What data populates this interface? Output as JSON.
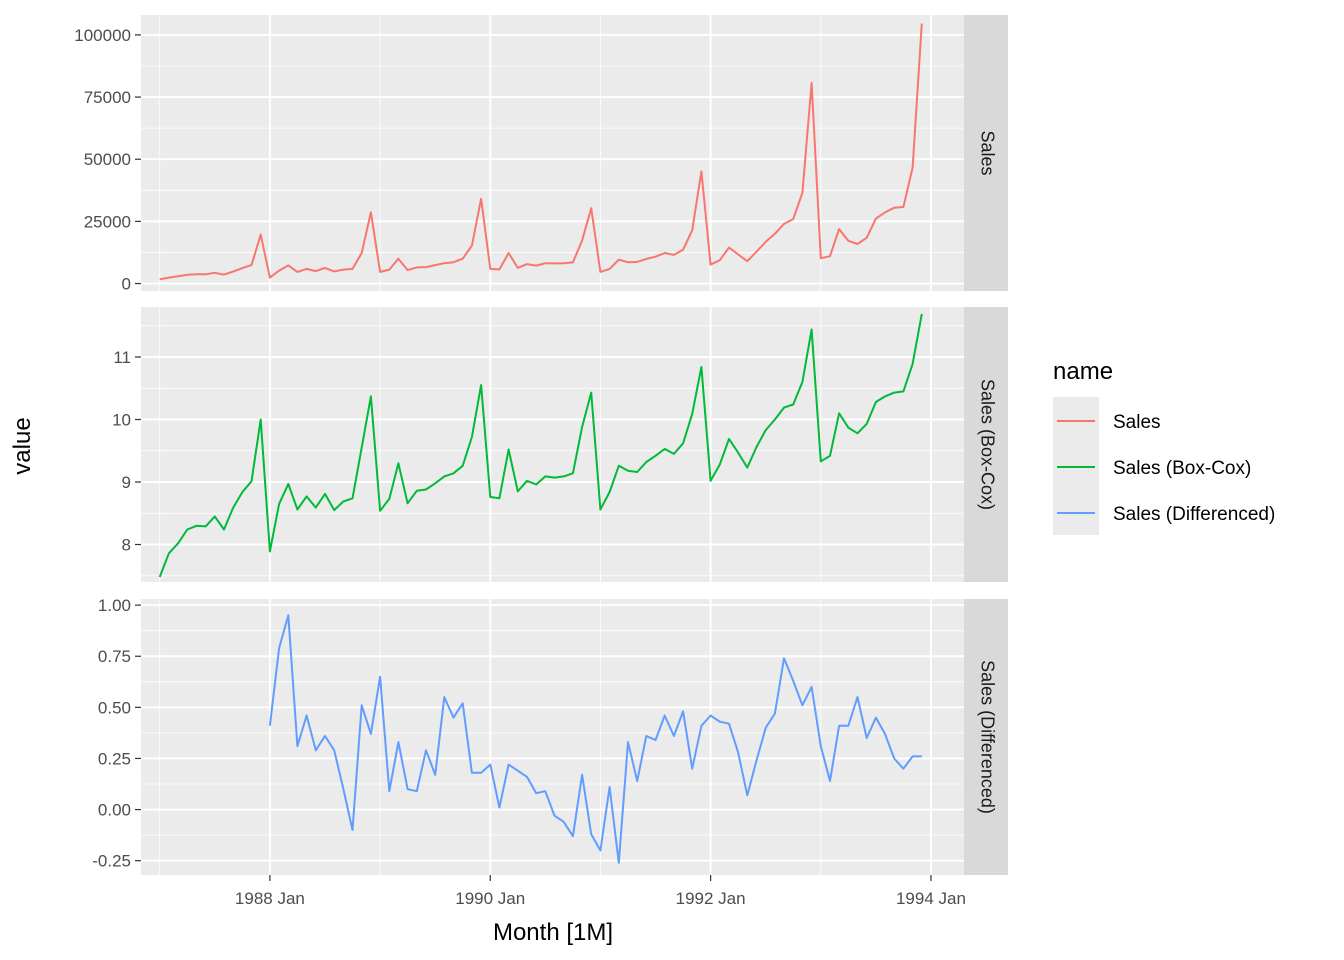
{
  "chart_data": {
    "type": "line",
    "xlabel": "Month [1M]",
    "ylabel": "value",
    "x_tick_labels": [
      "1988 Jan",
      "1990 Jan",
      "1992 Jan",
      "1994 Jan"
    ],
    "x_start": "1987 Jan",
    "legend": {
      "title": "name",
      "position": "right",
      "entries": [
        "Sales",
        "Sales (Box-Cox)",
        "Sales (Differenced)"
      ]
    },
    "grid": true,
    "panels": [
      {
        "name": "Sales",
        "strip_label": "Sales",
        "color": "#F8766D",
        "ylim": [
          -3000,
          108000
        ],
        "y_ticks": [
          0,
          25000,
          50000,
          75000,
          100000
        ],
        "y_tick_labels": [
          "0",
          "25000",
          "50000",
          "75000",
          "100000"
        ],
        "values": [
          1700,
          2400,
          2900,
          3500,
          3700,
          3700,
          4300,
          3600,
          4800,
          6200,
          7400,
          19700,
          2400,
          5200,
          7300,
          4700,
          5900,
          5000,
          6300,
          4900,
          5600,
          5900,
          12300,
          28600,
          4700,
          5600,
          10000,
          5400,
          6500,
          6600,
          7400,
          8200,
          8600,
          10000,
          15200,
          34100,
          5900,
          5700,
          12300,
          6300,
          7800,
          7200,
          8200,
          8100,
          8200,
          8500,
          17300,
          30300,
          4700,
          5900,
          9600,
          8600,
          8700,
          9900,
          10800,
          12300,
          11500,
          13600,
          21400,
          45100,
          7600,
          9400,
          14500,
          11700,
          9000,
          12800,
          16800,
          20000,
          24000,
          25900,
          36500,
          80700,
          10200,
          11000,
          21900,
          17200,
          15900,
          18400,
          26100,
          28600,
          30500,
          30800,
          46600,
          104600
        ]
      },
      {
        "name": "Sales (Box-Cox)",
        "strip_label": "Sales (Box-Cox)",
        "color": "#00BA38",
        "ylim": [
          7.4,
          11.8
        ],
        "y_ticks": [
          8,
          9,
          10,
          11
        ],
        "y_tick_labels": [
          "8",
          "9",
          "10",
          "11"
        ],
        "values": [
          7.48,
          7.86,
          8.02,
          8.24,
          8.3,
          8.29,
          8.45,
          8.24,
          8.59,
          8.84,
          9.01,
          10.0,
          7.89,
          8.65,
          8.97,
          8.56,
          8.77,
          8.59,
          8.81,
          8.55,
          8.69,
          8.74,
          9.55,
          10.37,
          8.54,
          8.73,
          9.3,
          8.66,
          8.86,
          8.88,
          8.98,
          9.09,
          9.14,
          9.26,
          9.72,
          10.55,
          8.76,
          8.74,
          9.52,
          8.85,
          9.02,
          8.96,
          9.09,
          9.07,
          9.09,
          9.14,
          9.88,
          10.43,
          8.56,
          8.84,
          9.26,
          9.18,
          9.16,
          9.32,
          9.42,
          9.53,
          9.45,
          9.62,
          10.09,
          10.84,
          9.02,
          9.28,
          9.69,
          9.47,
          9.23,
          9.56,
          9.83,
          10.0,
          10.19,
          10.24,
          10.6,
          11.44,
          9.33,
          9.42,
          10.1,
          9.87,
          9.78,
          9.93,
          10.28,
          10.37,
          10.43,
          10.45,
          10.89,
          11.69
        ]
      },
      {
        "name": "Sales (Differenced)",
        "strip_label": "Sales (Differenced)",
        "color": "#619CFF",
        "ylim": [
          -0.32,
          1.03
        ],
        "y_ticks": [
          -0.25,
          0,
          0.25,
          0.5,
          0.75,
          1.0
        ],
        "y_tick_labels": [
          "-0.25",
          "0.00",
          "0.25",
          "0.50",
          "0.75",
          "1.00"
        ],
        "values": [
          null,
          null,
          null,
          null,
          null,
          null,
          null,
          null,
          null,
          null,
          null,
          null,
          0.41,
          0.79,
          0.95,
          0.31,
          0.46,
          0.29,
          0.36,
          0.29,
          0.1,
          -0.1,
          0.51,
          0.37,
          0.65,
          0.09,
          0.33,
          0.1,
          0.09,
          0.29,
          0.17,
          0.55,
          0.45,
          0.52,
          0.18,
          0.18,
          0.22,
          0.01,
          0.22,
          0.19,
          0.16,
          0.08,
          0.09,
          -0.03,
          -0.06,
          -0.13,
          0.17,
          -0.12,
          -0.2,
          0.11,
          -0.26,
          0.33,
          0.14,
          0.36,
          0.34,
          0.46,
          0.36,
          0.48,
          0.2,
          0.41,
          0.46,
          0.43,
          0.42,
          0.28,
          0.07,
          0.24,
          0.4,
          0.47,
          0.74,
          0.63,
          0.51,
          0.6,
          0.31,
          0.14,
          0.41,
          0.41,
          0.55,
          0.35,
          0.45,
          0.37,
          0.25,
          0.2,
          0.26,
          0.26
        ]
      }
    ]
  }
}
